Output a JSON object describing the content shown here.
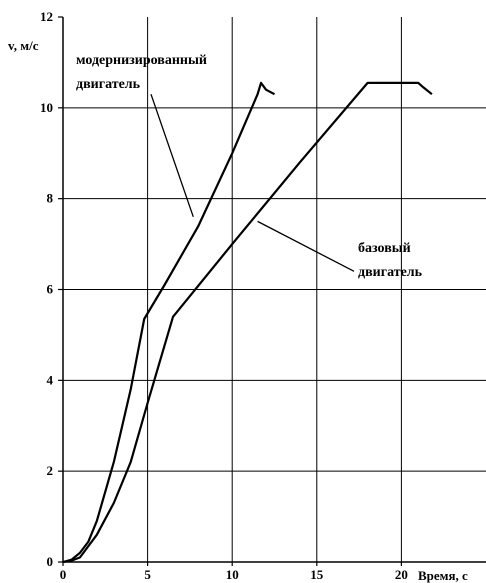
{
  "chart_data": {
    "type": "line",
    "ylabel": "v, м/с",
    "xlabel": "Время, с",
    "xlim": [
      0,
      25
    ],
    "ylim": [
      0,
      12
    ],
    "x_ticks": [
      "0",
      "5",
      "10",
      "15",
      "20"
    ],
    "y_ticks": [
      "0",
      "2",
      "4",
      "6",
      "8",
      "10",
      "12"
    ],
    "grid": true,
    "series": [
      {
        "name": "модернизированный двигатель",
        "points": [
          [
            0,
            0
          ],
          [
            0.5,
            0.05
          ],
          [
            1,
            0.2
          ],
          [
            1.5,
            0.45
          ],
          [
            2,
            0.9
          ],
          [
            3,
            2.2
          ],
          [
            4,
            3.8
          ],
          [
            4.8,
            5.35
          ],
          [
            6,
            6.1
          ],
          [
            8,
            7.4
          ],
          [
            10,
            9.0
          ],
          [
            11.5,
            10.3
          ],
          [
            11.7,
            10.55
          ],
          [
            12,
            10.4
          ],
          [
            12.5,
            10.3
          ]
        ]
      },
      {
        "name": "базовый двигатель",
        "points": [
          [
            0,
            0
          ],
          [
            0.5,
            0.03
          ],
          [
            1,
            0.1
          ],
          [
            2,
            0.6
          ],
          [
            3,
            1.3
          ],
          [
            4,
            2.2
          ],
          [
            5,
            3.5
          ],
          [
            6.5,
            5.4
          ],
          [
            10,
            7.0
          ],
          [
            14,
            8.8
          ],
          [
            18,
            10.55
          ],
          [
            21,
            10.55
          ],
          [
            21.3,
            10.45
          ],
          [
            21.8,
            10.3
          ]
        ]
      }
    ],
    "annotations": [
      "модернизированный",
      "двигатель",
      "базовый",
      "двигатель"
    ]
  }
}
